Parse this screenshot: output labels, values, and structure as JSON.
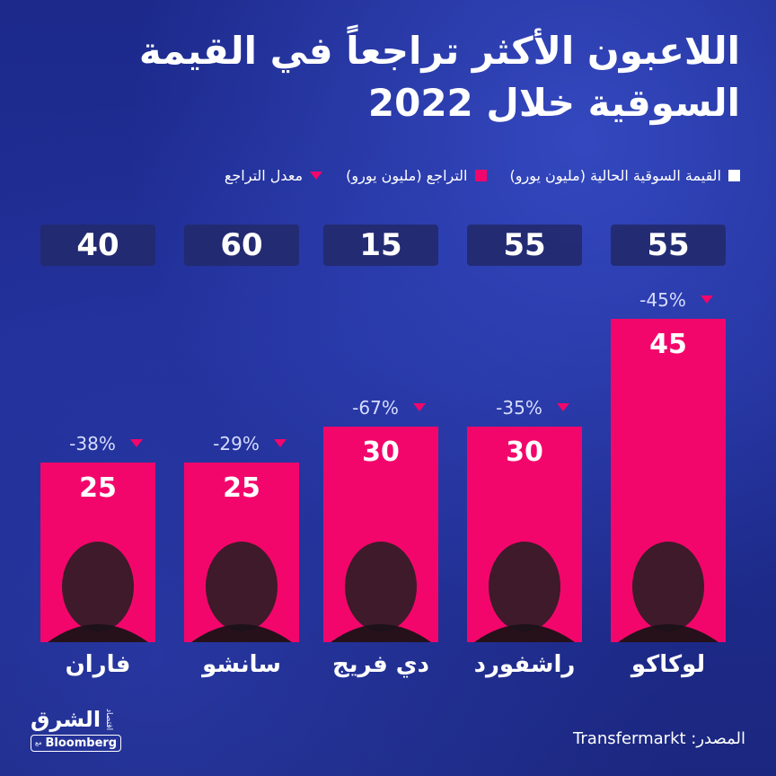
{
  "title_line1": "اللاعبون الأكثر تراجعاً في القيمة",
  "title_line2": "السوقية خلال 2022",
  "legend": {
    "current": "القيمة السوقية الحالية (مليون يورو)",
    "decline": "التراجع (مليون يورو)",
    "rate": "معدل التراجع"
  },
  "colors": {
    "bar": "#f3066b",
    "box": "#232a6e",
    "background": "#1f2d94"
  },
  "chart_data": {
    "type": "bar",
    "categories": [
      "لوكاكو",
      "راشفورد",
      "دي فريج",
      "سانشو",
      "فاران"
    ],
    "series": [
      {
        "name": "القيمة السوقية الحالية (مليون يورو)",
        "values": [
          55,
          55,
          15,
          60,
          40
        ]
      },
      {
        "name": "التراجع (مليون يورو)",
        "values": [
          45,
          30,
          30,
          25,
          25
        ]
      },
      {
        "name": "معدل التراجع",
        "values": [
          "-45%",
          "-35%",
          "-67%",
          "-29%",
          "-38%"
        ]
      }
    ]
  },
  "source": "المصدر: Transfermarkt",
  "logo": {
    "main": "الشرق",
    "sub": "اقتصاد",
    "with": "مع",
    "brand": "Bloomberg"
  }
}
